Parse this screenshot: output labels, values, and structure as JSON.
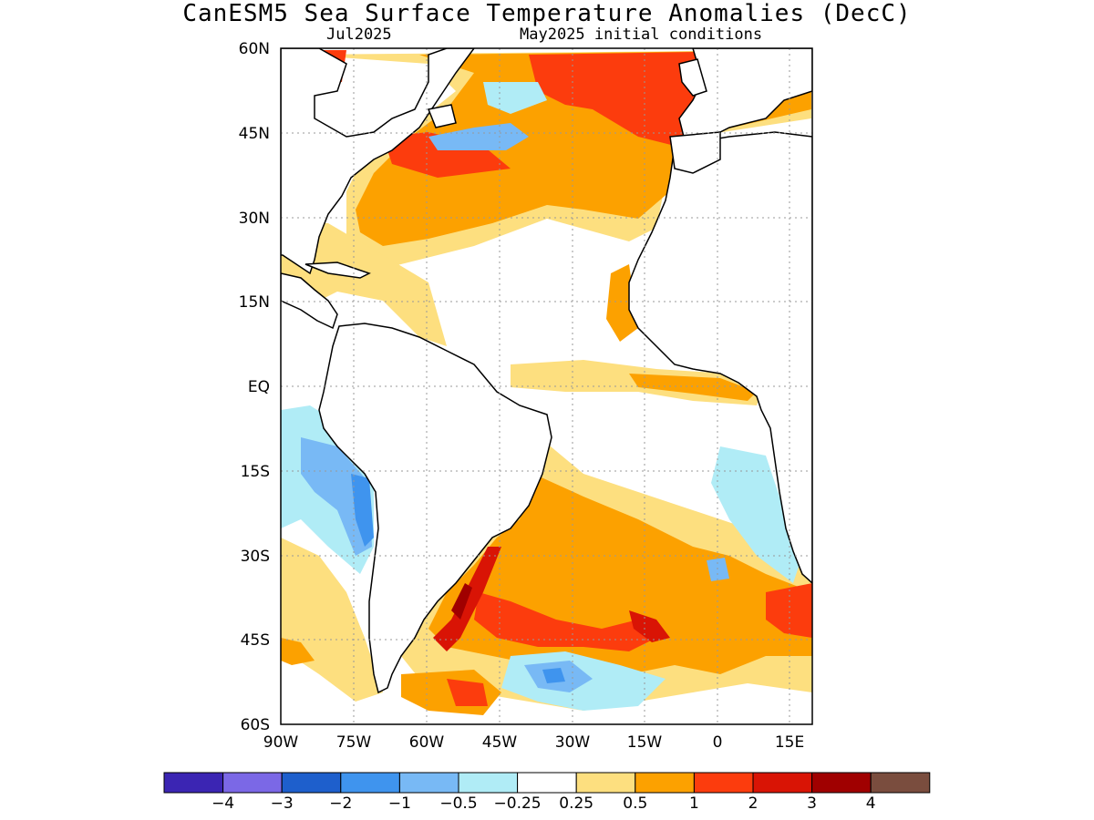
{
  "header": {
    "title": "CanESM5 Sea Surface Temperature Anomalies (DecC)",
    "valid_month": "Jul2025",
    "initial_conditions": "May2025 initial conditions"
  },
  "map": {
    "lat_labels": [
      "60N",
      "45N",
      "30N",
      "15N",
      "EQ",
      "15S",
      "30S",
      "45S",
      "60S"
    ],
    "lon_labels": [
      "90W",
      "75W",
      "60W",
      "45W",
      "30W",
      "15W",
      "0",
      "15E"
    ],
    "extent": {
      "lon_min": -90,
      "lon_max": 20,
      "lat_min": -60,
      "lat_max": 60
    },
    "gridlines": "dotted"
  },
  "colorbar": {
    "colors": [
      "#3b25b3",
      "#7b68e6",
      "#1e5fcc",
      "#3f94ee",
      "#78b9f5",
      "#b0ecf6",
      "#ffffff",
      "#fddf7f",
      "#fca100",
      "#fc3c0d",
      "#d91405",
      "#a00000",
      "#7a4d3e"
    ],
    "labels": [
      "-4",
      "-3",
      "-2",
      "-1",
      "-0.5",
      "-0.25",
      "0.25",
      "0.5",
      "1",
      "2",
      "3",
      "4"
    ]
  },
  "chart_data": {
    "type": "heatmap",
    "title": "CanESM5 Sea Surface Temperature Anomalies (DecC)",
    "subtitle": "Jul2025   May2025 initial conditions",
    "x_range": [
      -90,
      20
    ],
    "y_range": [
      -60,
      60
    ],
    "levels": [
      -4,
      -3,
      -2,
      -1,
      -0.5,
      -0.25,
      0.25,
      0.5,
      1,
      2,
      3,
      4
    ],
    "regions": [
      {
        "level": 2,
        "lon": [
          -35,
          0
        ],
        "lat": [
          48,
          60
        ]
      },
      {
        "level": 2,
        "lon": [
          -90,
          -78
        ],
        "lat": [
          52,
          60
        ]
      },
      {
        "level": 2,
        "lon": [
          -62,
          -45
        ],
        "lat": [
          36,
          42
        ]
      },
      {
        "level": 1,
        "lon": [
          -70,
          -15
        ],
        "lat": [
          30,
          48
        ]
      },
      {
        "level": 0.5,
        "lon": [
          -60,
          -10
        ],
        "lat": [
          25,
          32
        ]
      },
      {
        "level": -1,
        "lon": [
          -60,
          -45
        ],
        "lat": [
          42,
          48
        ]
      },
      {
        "level": -0.25,
        "lon": [
          -90,
          -70
        ],
        "lat": [
          -30,
          -8
        ]
      },
      {
        "level": -1,
        "lon": [
          -80,
          -75
        ],
        "lat": [
          -22,
          -12
        ]
      },
      {
        "level": 0.5,
        "lon": [
          -40,
          -5
        ],
        "lat": [
          -3,
          2
        ]
      },
      {
        "level": 1,
        "lon": [
          -40,
          -5
        ],
        "lat": [
          -30,
          -20
        ]
      },
      {
        "level": 1,
        "lon": [
          -55,
          20
        ],
        "lat": [
          -48,
          -36
        ]
      },
      {
        "level": 2,
        "lon": [
          -48,
          -20
        ],
        "lat": [
          -45,
          -40
        ]
      },
      {
        "level": 3,
        "lon": [
          -55,
          -52
        ],
        "lat": [
          -42,
          -35
        ]
      },
      {
        "level": 2,
        "lon": [
          -20,
          -12
        ],
        "lat": [
          -44,
          -40
        ]
      },
      {
        "level": 1,
        "lon": [
          -55,
          -40
        ],
        "lat": [
          -58,
          -52
        ]
      },
      {
        "level": -1,
        "lon": [
          -38,
          -28
        ],
        "lat": [
          -54,
          -49
        ]
      },
      {
        "level": -0.25,
        "lon": [
          5,
          15
        ],
        "lat": [
          -30,
          -15
        ]
      }
    ]
  }
}
